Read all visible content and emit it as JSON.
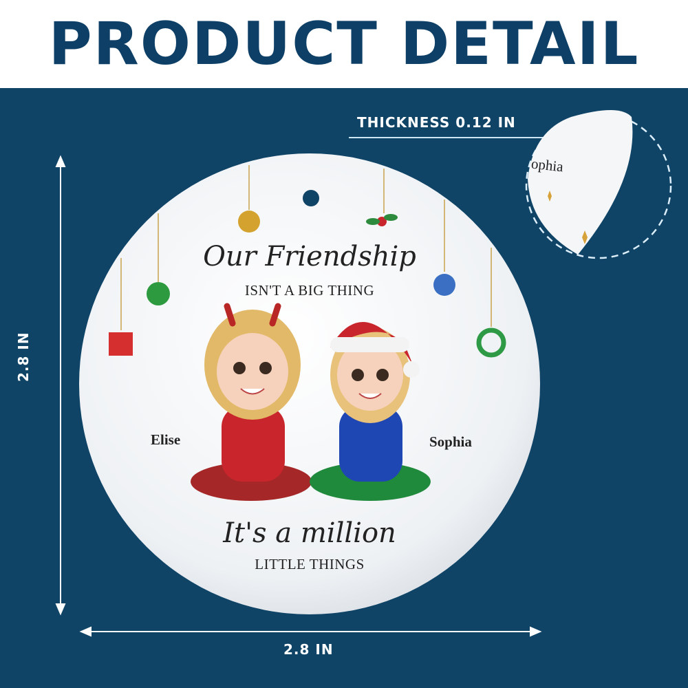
{
  "header": {
    "title": "PRODUCT DETAIL"
  },
  "dimensions": {
    "thickness": "THICKNESS 0.12 IN",
    "height": "2.8 IN",
    "width": "2.8 IN"
  },
  "ornament": {
    "line1": "Our Friendship",
    "line2": "ISN'T A BIG THING",
    "line3": "It's a million",
    "line4": "LITTLE THINGS",
    "name_left": "Elise",
    "name_right": "Sophia",
    "zoom_name": "ophia"
  },
  "colors": {
    "brand_blue": "#0f4467",
    "title_blue": "#0e3f66",
    "red_sweater": "#c8262c",
    "blue_sweater": "#1f47b3"
  }
}
